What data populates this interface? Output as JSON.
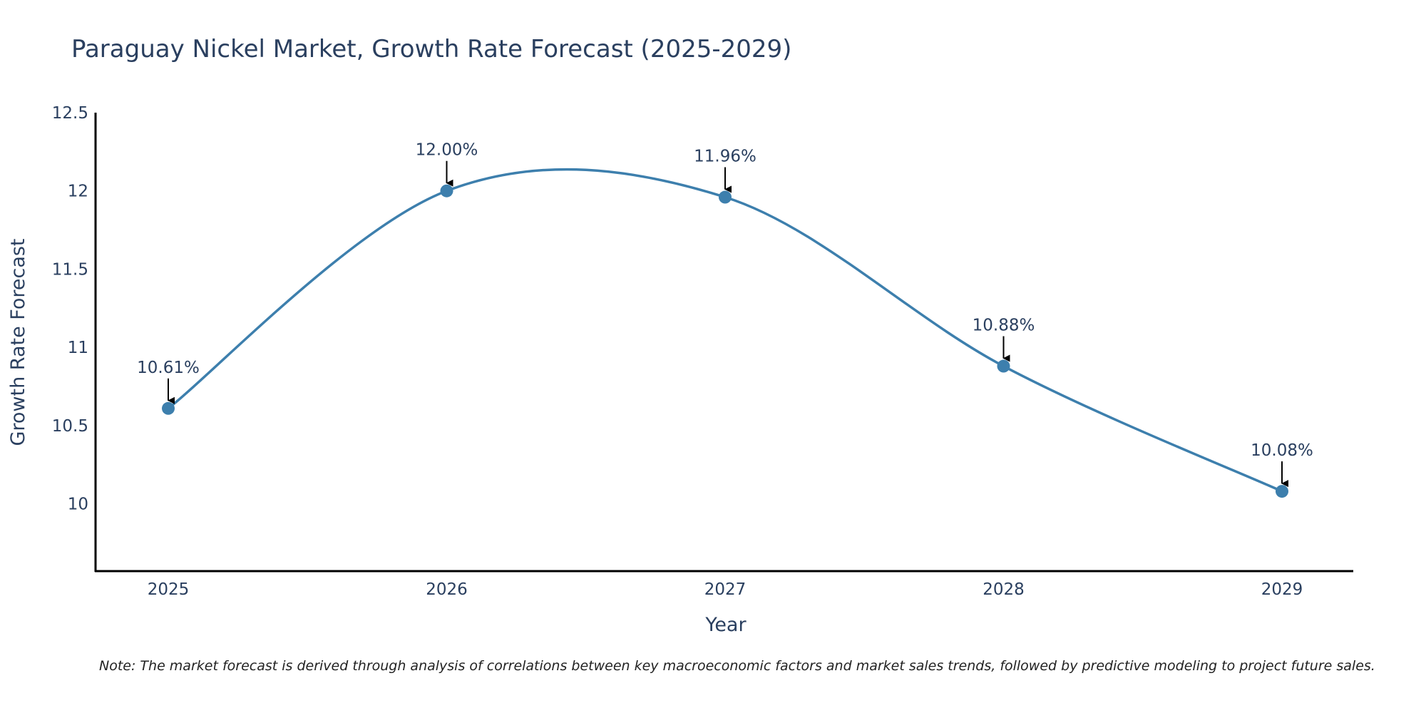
{
  "chart_data": {
    "type": "line",
    "title": "Paraguay Nickel Market, Growth Rate Forecast (2025-2029)",
    "xlabel": "Year",
    "ylabel": "Growth Rate Forecast",
    "categories": [
      "2025",
      "2026",
      "2027",
      "2028",
      "2029"
    ],
    "values": [
      10.61,
      12.0,
      11.96,
      10.88,
      10.08
    ],
    "labels": [
      "10.61%",
      "12.00%",
      "11.96%",
      "10.88%",
      "10.08%"
    ],
    "yticks": [
      10,
      10.5,
      11,
      11.5,
      12,
      12.5
    ],
    "ytick_labels": [
      "10",
      "10.5",
      "11",
      "11.5",
      "12",
      "12.5"
    ],
    "ylim": [
      9.57,
      12.5
    ],
    "grid": false,
    "line_color": "#3d7fad",
    "note": "Note: The market forecast is derived through analysis of correlations between key macroeconomic factors and market sales trends, followed by predictive modeling to project future sales."
  }
}
